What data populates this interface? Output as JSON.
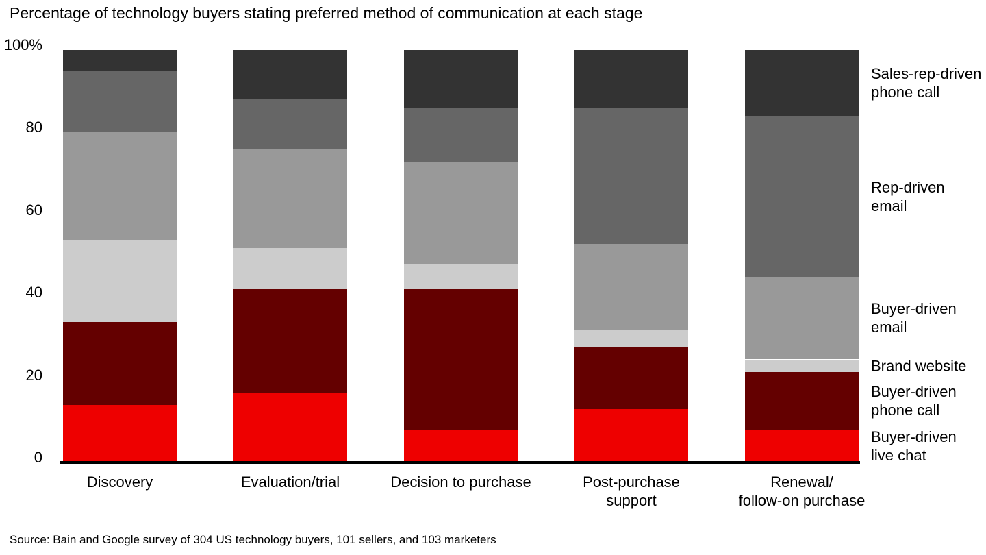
{
  "title": "Percentage of technology buyers stating preferred method of communication at each stage",
  "source": "Source: Bain and Google survey of 304 US technology buyers, 101 sellers, and 103 marketers",
  "chart_data": {
    "type": "bar",
    "stacked": true,
    "unit": "percent of respondents",
    "title": "Percentage of technology buyers stating preferred method of communication at each stage",
    "categories": [
      "Discovery",
      "Evaluation/trial",
      "Decision to purchase",
      "Post-purchase\nsupport",
      "Renewal/\nfollow-on purchase"
    ],
    "y_ticks": [
      {
        "label": "100%",
        "value": 100
      },
      {
        "label": "80",
        "value": 80
      },
      {
        "label": "60",
        "value": 60
      },
      {
        "label": "40",
        "value": 40
      },
      {
        "label": "20",
        "value": 20
      },
      {
        "label": "0",
        "value": 0
      }
    ],
    "ylim": [
      0,
      100
    ],
    "grid": false,
    "legend_position": "right",
    "series": [
      {
        "name": "Buyer-driven\nlive chat",
        "color": "#ee0000",
        "values": [
          14,
          17,
          8,
          13,
          8
        ]
      },
      {
        "name": "Buyer-driven\nphone call",
        "color": "#640000",
        "values": [
          20,
          25,
          34,
          15,
          14
        ]
      },
      {
        "name": "Brand website",
        "color": "#cccccc",
        "values": [
          20,
          10,
          6,
          4,
          3
        ]
      },
      {
        "name": "Buyer-driven\nemail",
        "color": "#999999",
        "values": [
          26,
          24,
          25,
          21,
          20
        ]
      },
      {
        "name": "Rep-driven\nemail",
        "color": "#666666",
        "values": [
          15,
          12,
          13,
          33,
          39
        ]
      },
      {
        "name": "Sales-rep-driven\nphone call",
        "color": "#333333",
        "values": [
          5,
          12,
          14,
          14,
          16
        ]
      }
    ]
  }
}
